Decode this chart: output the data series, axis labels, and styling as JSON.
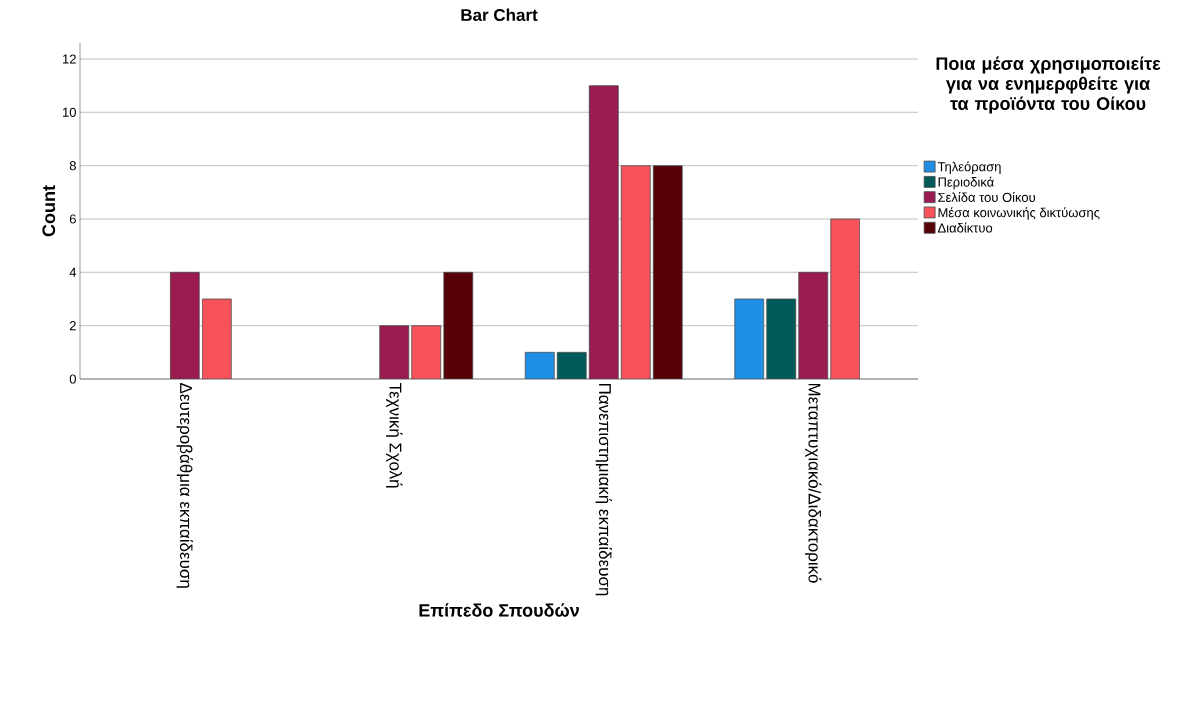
{
  "chart_data": {
    "type": "bar",
    "title": "Bar Chart",
    "xlabel": "Επίπεδο Σπουδών",
    "ylabel": "Count",
    "legend_title": "Ποια μέσα χρησιμοποιείτε για να ενημερφθείτε για τα προϊόντα του Οίκου",
    "categories": [
      "Δευτεροβάθμια εκπαίδευση",
      "Τεχνική Σχολή",
      "Πανεπιστημιακή εκπαίδευση",
      "Μεταπτυχιακό/Διδακτορικό"
    ],
    "series": [
      {
        "name": "Τηλεόραση",
        "color": "#1f8fe6",
        "values": [
          null,
          null,
          1,
          3
        ]
      },
      {
        "name": "Περιοδικά",
        "color": "#005a5a",
        "values": [
          null,
          null,
          1,
          3
        ]
      },
      {
        "name": "Σελίδα του Οίκου",
        "color": "#9b1a4f",
        "values": [
          4,
          2,
          11,
          4
        ]
      },
      {
        "name": "Μέσα κοινωνικής δικτύωσης",
        "color": "#f9525a",
        "values": [
          3,
          2,
          8,
          6
        ]
      },
      {
        "name": "Διαδίκτυο",
        "color": "#560008",
        "values": [
          null,
          4,
          8,
          null
        ]
      }
    ],
    "ylim": [
      0,
      12.6
    ],
    "yticks": [
      0,
      2,
      4,
      6,
      8,
      10,
      12
    ],
    "grid": "y",
    "legend": "right"
  }
}
